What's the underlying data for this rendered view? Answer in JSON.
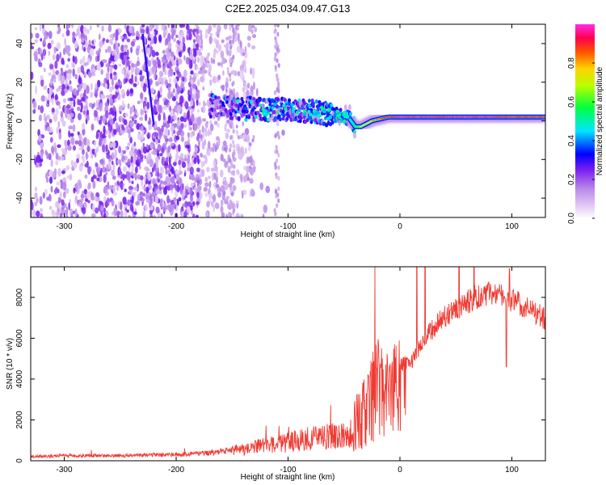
{
  "figure": {
    "title": "C2E2.2025.034.09.47.G13"
  },
  "colors": {
    "snr_line": "#f03a32",
    "frame": "#000000",
    "colormap": [
      "#ffffff",
      "#e4ccf6",
      "#b98be8",
      "#7a1ff0",
      "#0000ff",
      "#00e6ff",
      "#00ff40",
      "#b6ff00",
      "#ffd400",
      "#ff5000",
      "#ff0050",
      "#ff2ee6"
    ]
  },
  "chart_data": [
    {
      "type": "heatmap",
      "xlabel": "Height of straight line (km)",
      "ylabel": "Frequency (Hz)",
      "xlim": [
        -330,
        130
      ],
      "ylim": [
        -50,
        50
      ],
      "xticks": [
        -300,
        -200,
        -100,
        0,
        100
      ],
      "yticks": [
        -40,
        -20,
        0,
        20,
        40
      ],
      "colorbar": {
        "label": "Normalized spectral amplitude",
        "range": [
          0,
          1
        ],
        "ticks": [
          0.0,
          0.2,
          0.4,
          0.6,
          0.8
        ]
      },
      "signal_trace": {
        "height_km": [
          -170,
          -150,
          -130,
          -110,
          -90,
          -70,
          -55,
          -45,
          -40,
          -35,
          -25,
          -10,
          0,
          20,
          50,
          80,
          100,
          130
        ],
        "frequency_hz": [
          8,
          7,
          6,
          6,
          6,
          4,
          3,
          1,
          -3,
          -3,
          0,
          2,
          2,
          2,
          2,
          2,
          2,
          2
        ],
        "amplitude": [
          0.3,
          0.35,
          0.35,
          0.4,
          0.4,
          0.45,
          0.45,
          0.5,
          0.55,
          0.7,
          0.8,
          0.9,
          0.95,
          0.95,
          0.95,
          0.95,
          0.9,
          0.9
        ]
      },
      "streak": {
        "height_km": [
          -230,
          -220
        ],
        "frequency_hz": [
          45,
          -2
        ]
      }
    },
    {
      "type": "line",
      "xlabel": "Height of straight line (km)",
      "ylabel": "SNR (10 * v/v)",
      "xlim": [
        -330,
        130
      ],
      "ylim": [
        0,
        9500
      ],
      "xticks": [
        -300,
        -200,
        -100,
        0,
        100
      ],
      "yticks": [
        0,
        2000,
        4000,
        6000,
        8000
      ],
      "series": [
        {
          "x": [
            -330,
            -300,
            -250,
            -200,
            -180,
            -160,
            -150,
            -140,
            -130,
            -120,
            -110,
            -100,
            -90,
            -80,
            -70,
            -60,
            -50,
            -45,
            -40,
            -35,
            -30,
            -25,
            -20,
            -15,
            -10,
            -5,
            0,
            10,
            20,
            30,
            40,
            50,
            60,
            70,
            80,
            90,
            100,
            110,
            120,
            130
          ],
          "y": [
            200,
            250,
            250,
            300,
            350,
            450,
            500,
            550,
            650,
            750,
            800,
            900,
            1000,
            1100,
            1150,
            1200,
            1200,
            1300,
            2300,
            2700,
            3200,
            4300,
            4600,
            4200,
            4000,
            4500,
            4700,
            4800,
            5900,
            6500,
            7100,
            7400,
            7800,
            8100,
            8200,
            8000,
            7900,
            7600,
            7300,
            6900
          ]
        }
      ]
    }
  ]
}
